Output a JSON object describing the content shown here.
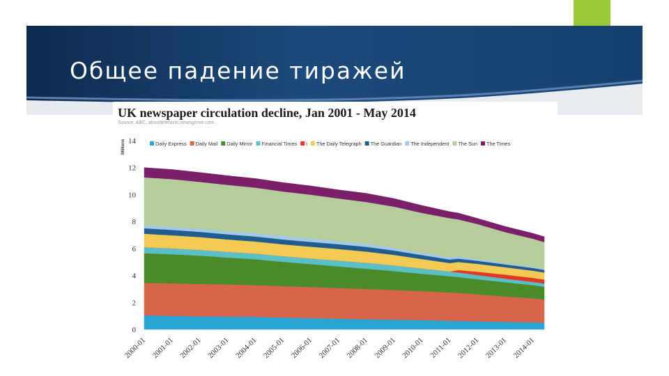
{
  "slide": {
    "title": "Общее падение тиражей",
    "accent_color": "#9bc93a",
    "banner_color": "#163a66"
  },
  "chart_data": {
    "type": "area",
    "title": "UK newspaper circulation decline, Jan 2001 - May 2014",
    "source": "Source: ABC, abouttelefacts.newsgrove.com",
    "ylabel": "Millions",
    "xlabel": "",
    "ylim": [
      0,
      14
    ],
    "y_ticks": [
      0,
      2,
      4,
      6,
      8,
      10,
      12,
      14
    ],
    "x_ticks": [
      "2000-01",
      "2001-01",
      "2002-01",
      "2003-01",
      "2004-01",
      "2005-01",
      "2006-01",
      "2007-01",
      "2008-01",
      "2009-01",
      "2010-01",
      "2011-01",
      "2012-01",
      "2013-01",
      "2014-01"
    ],
    "x_range": [
      2000.0,
      2014.6
    ],
    "grid": false,
    "stacked": true,
    "legend_position": "top",
    "x": [
      2000.0,
      2001.0,
      2002.0,
      2003.0,
      2004.0,
      2005.0,
      2006.0,
      2007.0,
      2008.0,
      2009.0,
      2010.0,
      2011.0,
      2011.3,
      2012.0,
      2013.0,
      2014.0,
      2014.4
    ],
    "series": [
      {
        "name": "Daily Express",
        "color": "#29a5d8",
        "values": [
          1.05,
          1.0,
          0.97,
          0.95,
          0.93,
          0.88,
          0.83,
          0.79,
          0.75,
          0.72,
          0.68,
          0.64,
          0.63,
          0.6,
          0.56,
          0.52,
          0.5
        ]
      },
      {
        "name": "Daily Mail",
        "color": "#d8654b",
        "values": [
          2.4,
          2.42,
          2.4,
          2.38,
          2.35,
          2.33,
          2.31,
          2.28,
          2.25,
          2.2,
          2.15,
          2.1,
          2.08,
          2.0,
          1.88,
          1.78,
          1.72
        ]
      },
      {
        "name": "Daily Mirror",
        "color": "#4b8a28",
        "values": [
          2.2,
          2.15,
          2.1,
          2.0,
          1.92,
          1.8,
          1.7,
          1.6,
          1.5,
          1.4,
          1.3,
          1.2,
          1.17,
          1.12,
          1.05,
          0.98,
          0.95
        ]
      },
      {
        "name": "Financial Times",
        "color": "#5bbfc8",
        "values": [
          0.45,
          0.44,
          0.43,
          0.42,
          0.42,
          0.42,
          0.42,
          0.43,
          0.44,
          0.42,
          0.39,
          0.35,
          0.34,
          0.31,
          0.27,
          0.24,
          0.23
        ]
      },
      {
        "name": "i",
        "color": "#e03a26",
        "values": [
          0,
          0,
          0,
          0,
          0,
          0,
          0,
          0,
          0,
          0,
          0,
          0,
          0.18,
          0.25,
          0.3,
          0.3,
          0.3
        ]
      },
      {
        "name": "The Daily Telegraph",
        "color": "#f3cb54",
        "values": [
          1.0,
          0.97,
          0.95,
          0.92,
          0.9,
          0.88,
          0.87,
          0.86,
          0.83,
          0.78,
          0.7,
          0.63,
          0.6,
          0.58,
          0.55,
          0.53,
          0.52
        ]
      },
      {
        "name": "The Guardian",
        "color": "#1f5d8f",
        "values": [
          0.4,
          0.4,
          0.39,
          0.38,
          0.37,
          0.36,
          0.36,
          0.36,
          0.35,
          0.33,
          0.29,
          0.26,
          0.25,
          0.23,
          0.21,
          0.2,
          0.19
        ]
      },
      {
        "name": "The Independent",
        "color": "#a3c8e8",
        "values": [
          0.23,
          0.22,
          0.22,
          0.22,
          0.25,
          0.26,
          0.25,
          0.24,
          0.23,
          0.2,
          0.18,
          0.17,
          0.16,
          0.12,
          0.09,
          0.07,
          0.07
        ]
      },
      {
        "name": "The Sun",
        "color": "#b5cd9a",
        "values": [
          3.55,
          3.55,
          3.48,
          3.45,
          3.38,
          3.3,
          3.25,
          3.15,
          3.1,
          3.05,
          2.95,
          2.9,
          2.75,
          2.6,
          2.3,
          2.1,
          2.0
        ]
      },
      {
        "name": "The Times",
        "color": "#7b1f6b",
        "values": [
          0.72,
          0.71,
          0.7,
          0.68,
          0.67,
          0.66,
          0.65,
          0.64,
          0.64,
          0.6,
          0.55,
          0.48,
          0.47,
          0.42,
          0.42,
          0.4,
          0.39
        ]
      }
    ]
  }
}
